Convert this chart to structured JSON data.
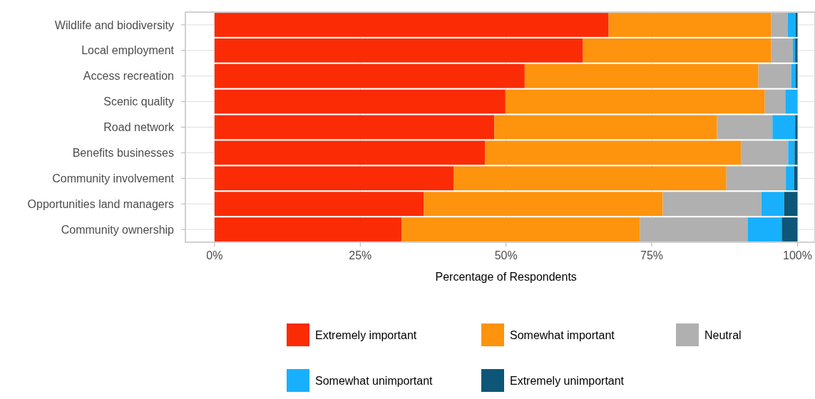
{
  "chart_data": {
    "type": "bar",
    "orientation": "horizontal",
    "stacked": true,
    "xlabel": "Percentage of Respondents",
    "categories": [
      "Wildlife and biodiversity",
      "Local employment",
      "Access recreation",
      "Scenic quality",
      "Road network",
      "Benefits businesses",
      "Community involvement",
      "Opportunities land managers",
      "Community ownership"
    ],
    "series": [
      {
        "name": "Extremely important",
        "color": "#fb2b06",
        "values": [
          67.6,
          63.2,
          53.2,
          49.9,
          48.0,
          46.4,
          41.0,
          35.9,
          32.1
        ]
      },
      {
        "name": "Somewhat important",
        "color": "#fe930d",
        "values": [
          27.9,
          32.3,
          40.1,
          44.5,
          38.2,
          43.9,
          46.8,
          41.0,
          40.9
        ]
      },
      {
        "name": "Neutral",
        "color": "#b0b0b0",
        "values": [
          2.8,
          3.7,
          5.6,
          3.5,
          9.5,
          8.1,
          10.2,
          16.9,
          18.5
        ]
      },
      {
        "name": "Somewhat unimportant",
        "color": "#18b0fd",
        "values": [
          1.4,
          0.4,
          0.8,
          2.1,
          3.9,
          1.1,
          1.4,
          3.9,
          5.8
        ]
      },
      {
        "name": "Extremely unimportant",
        "color": "#0d5677",
        "values": [
          0.3,
          0.4,
          0.3,
          0,
          0.4,
          0.5,
          0.6,
          2.3,
          2.7
        ]
      }
    ],
    "xlim": [
      -5,
      103
    ],
    "xticks": [
      {
        "value": 0,
        "label": "0%"
      },
      {
        "value": 25,
        "label": "25%"
      },
      {
        "value": 50,
        "label": "50%"
      },
      {
        "value": 75,
        "label": "75%"
      },
      {
        "value": 100,
        "label": "100%"
      }
    ],
    "grid": true,
    "legend": "bottom"
  }
}
